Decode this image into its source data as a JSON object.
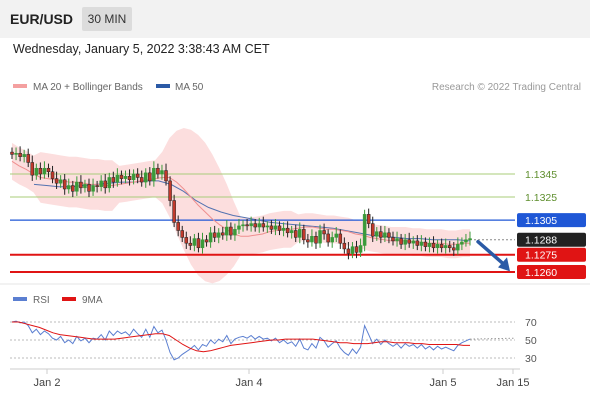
{
  "header": {
    "symbol": "EUR/USD",
    "timeframe": "30 MIN",
    "datetime": "Wednesday, January 5, 2022 3:38:43 AM CET"
  },
  "legend": {
    "ma20_label": "MA 20 + Bollinger Bands",
    "ma50_label": "MA 50",
    "credit": "Research © 2022 Trading Central"
  },
  "chart_data": [
    {
      "type": "candlestick",
      "title": "",
      "x_ticks": [
        "Jan 2",
        "Jan 4",
        "Jan 5",
        "Jan 15"
      ],
      "ylim": [
        1.1252,
        1.1366
      ],
      "legend_placement": "top-left",
      "price_levels": [
        {
          "label": "1.1345",
          "value": 1.1345,
          "color": "#a8cc7a",
          "style": "line"
        },
        {
          "label": "1.1325",
          "value": 1.1325,
          "color": "#a8cc7a",
          "style": "line"
        },
        {
          "label": "1.1305",
          "value": 1.1305,
          "color": "#1f57d6",
          "style": "label"
        },
        {
          "label": "1.1288",
          "value": 1.1288,
          "color": "#222222",
          "style": "label"
        },
        {
          "label": "1.1275",
          "value": 1.1275,
          "color": "#e01414",
          "style": "label"
        },
        {
          "label": "1.1260",
          "value": 1.126,
          "color": "#e01414",
          "style": "label"
        }
      ],
      "close_series": [
        1.1362,
        1.1363,
        1.136,
        1.1362,
        1.1355,
        1.1344,
        1.135,
        1.1345,
        1.135,
        1.1347,
        1.1341,
        1.1337,
        1.134,
        1.1332,
        1.1335,
        1.133,
        1.1338,
        1.1333,
        1.1336,
        1.133,
        1.1335,
        1.1334,
        1.1339,
        1.1333,
        1.1342,
        1.1338,
        1.1344,
        1.1341,
        1.1343,
        1.134,
        1.1345,
        1.1342,
        1.1338,
        1.1346,
        1.1339,
        1.135,
        1.1345,
        1.1348,
        1.1339,
        1.1322,
        1.1303,
        1.1296,
        1.129,
        1.1285,
        1.1283,
        1.1289,
        1.1281,
        1.1288,
        1.1286,
        1.1294,
        1.129,
        1.1294,
        1.1292,
        1.1299,
        1.1292,
        1.1297,
        1.13,
        1.1301,
        1.13,
        1.1302,
        1.1299,
        1.1302,
        1.1299,
        1.13,
        1.1297,
        1.13,
        1.1296,
        1.1298,
        1.1294,
        1.1296,
        1.129,
        1.1297,
        1.1288,
        1.1286,
        1.1291,
        1.1285,
        1.1296,
        1.1293,
        1.1286,
        1.129,
        1.1293,
        1.1285,
        1.128,
        1.1276,
        1.1282,
        1.1277,
        1.1283,
        1.131,
        1.1302,
        1.1291,
        1.1295,
        1.129,
        1.1294,
        1.129,
        1.1287,
        1.1289,
        1.1284,
        1.1288,
        1.1285,
        1.1287,
        1.1283,
        1.1286,
        1.1282,
        1.1285,
        1.1281,
        1.1284,
        1.1281,
        1.1283,
        1.1281,
        1.1279,
        1.1284,
        1.1286,
        1.1288,
        1.1289
      ],
      "ma20_series": [
        1.1356,
        1.1352,
        1.1349,
        1.1345,
        1.1342,
        1.1341,
        1.134,
        1.1339,
        1.1338,
        1.1338,
        1.1337,
        1.1336,
        1.1336,
        1.1335,
        1.1335,
        1.1336,
        1.1337,
        1.1338,
        1.1339,
        1.134,
        1.1341,
        1.1342,
        1.1342,
        1.1338,
        1.1332,
        1.1325,
        1.1318,
        1.1312,
        1.1306,
        1.1301,
        1.1297,
        1.1293,
        1.1291,
        1.1291,
        1.1292,
        1.1293,
        1.1295,
        1.1296,
        1.1297,
        1.1297,
        1.1298,
        1.1299,
        1.1299,
        1.1298,
        1.1297,
        1.1297,
        1.1296,
        1.1295,
        1.1293,
        1.1292,
        1.129,
        1.1289,
        1.1288,
        1.1287,
        1.1287,
        1.1287,
        1.1286,
        1.1286,
        1.1285,
        1.1285,
        1.1285,
        1.1284,
        1.1284,
        1.1285,
        1.1285
      ],
      "ma50_series": [
        1.1336,
        1.1335,
        1.1334,
        1.1334,
        1.1335,
        1.1336,
        1.1337,
        1.1338,
        1.1338,
        1.1339,
        1.1339,
        1.1336,
        1.133,
        1.1322,
        1.1316,
        1.1312,
        1.1309,
        1.1307,
        1.1305,
        1.1303,
        1.1302,
        1.1301,
        1.13,
        1.1299,
        1.1298,
        1.1296,
        1.1294,
        1.1292,
        1.1291,
        1.129,
        1.1289,
        1.1289,
        1.1288,
        1.1288,
        1.1288,
        1.1287
      ],
      "forecast": {
        "from": 1.1288,
        "to": 1.1264,
        "color": "#2b5aa6"
      }
    },
    {
      "type": "line",
      "title": "",
      "series": [
        {
          "name": "RSI",
          "color": "#5b7fd1",
          "values": [
            70,
            71,
            69,
            70,
            66,
            58,
            62,
            56,
            60,
            57,
            52,
            50,
            54,
            47,
            50,
            46,
            54,
            49,
            52,
            47,
            52,
            51,
            56,
            50,
            60,
            55,
            60,
            57,
            59,
            55,
            62,
            57,
            53,
            62,
            53,
            65,
            58,
            61,
            50,
            36,
            28,
            30,
            34,
            37,
            40,
            44,
            39,
            45,
            43,
            50,
            46,
            51,
            48,
            55,
            46,
            51,
            53,
            54,
            52,
            55,
            51,
            54,
            51,
            52,
            49,
            52,
            47,
            50,
            46,
            48,
            43,
            51,
            41,
            39,
            46,
            41,
            53,
            49,
            42,
            46,
            49,
            41,
            36,
            33,
            40,
            35,
            42,
            66,
            56,
            46,
            51,
            45,
            50,
            46,
            43,
            46,
            41,
            46,
            43,
            45,
            41,
            45,
            40,
            43,
            39,
            43,
            40,
            42,
            40,
            38,
            44,
            47,
            49,
            51
          ]
        },
        {
          "name": "9MA",
          "color": "#e01414",
          "values": [
            70,
            70,
            68,
            66,
            64,
            61,
            58,
            56,
            55,
            54,
            53,
            52,
            51,
            51,
            51,
            51,
            52,
            53,
            54,
            55,
            56,
            57,
            57,
            55,
            50,
            45,
            41,
            38,
            37,
            38,
            40,
            42,
            44,
            45,
            46,
            47,
            48,
            49,
            50,
            50,
            51,
            51,
            51,
            51,
            51,
            50,
            49,
            48,
            47,
            47,
            46,
            46,
            46,
            47,
            48,
            48,
            47,
            47,
            47,
            46,
            46,
            45,
            45,
            45,
            45,
            45,
            44,
            44
          ]
        }
      ],
      "yticks": [
        70,
        50,
        30
      ],
      "ylim": [
        20,
        80
      ]
    }
  ]
}
